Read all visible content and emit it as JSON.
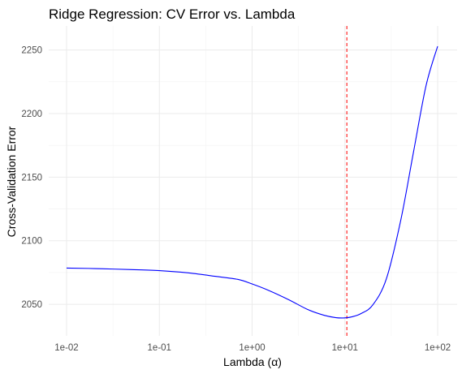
{
  "chart_data": {
    "type": "line",
    "title": "Ridge Regression: CV Error vs. Lambda",
    "xlabel": "Lambda (α)",
    "ylabel": "Cross-Validation Error",
    "x_scale": "log10",
    "xlim": [
      0.01,
      100
    ],
    "ylim": [
      2036,
      2260
    ],
    "x_ticks": [
      {
        "value": 0.01,
        "label": "1e-02"
      },
      {
        "value": 0.1,
        "label": "1e-01"
      },
      {
        "value": 1,
        "label": "1e+00"
      },
      {
        "value": 10,
        "label": "1e+01"
      },
      {
        "value": 100,
        "label": "1e+02"
      }
    ],
    "y_ticks": [
      {
        "value": 2050,
        "label": "2050"
      },
      {
        "value": 2100,
        "label": "2100"
      },
      {
        "value": 2150,
        "label": "2150"
      },
      {
        "value": 2200,
        "label": "2200"
      },
      {
        "value": 2250,
        "label": "2250"
      }
    ],
    "grid": true,
    "series": [
      {
        "color": "#0000ff",
        "x": [
          0.01,
          0.02,
          0.05,
          0.1,
          0.2,
          0.4,
          0.7,
          1.0,
          1.5,
          2.5,
          4.0,
          6.0,
          8.0,
          10.0,
          12.0,
          15.0,
          20.0,
          28.0,
          40.0,
          55.0,
          75.0,
          100.0
        ],
        "y": [
          2078.5,
          2078.1,
          2077.3,
          2076.5,
          2074.8,
          2072.0,
          2069.6,
          2066.0,
          2061.0,
          2053.5,
          2045.8,
          2041.3,
          2039.5,
          2039.3,
          2040.2,
          2042.8,
          2049.5,
          2070.0,
          2116.0,
          2170.0,
          2222.0,
          2253.0
        ]
      }
    ],
    "reference_lines": [
      {
        "orientation": "vertical",
        "x": 10.5,
        "color": "#ff0000",
        "style": "dashed"
      }
    ]
  }
}
